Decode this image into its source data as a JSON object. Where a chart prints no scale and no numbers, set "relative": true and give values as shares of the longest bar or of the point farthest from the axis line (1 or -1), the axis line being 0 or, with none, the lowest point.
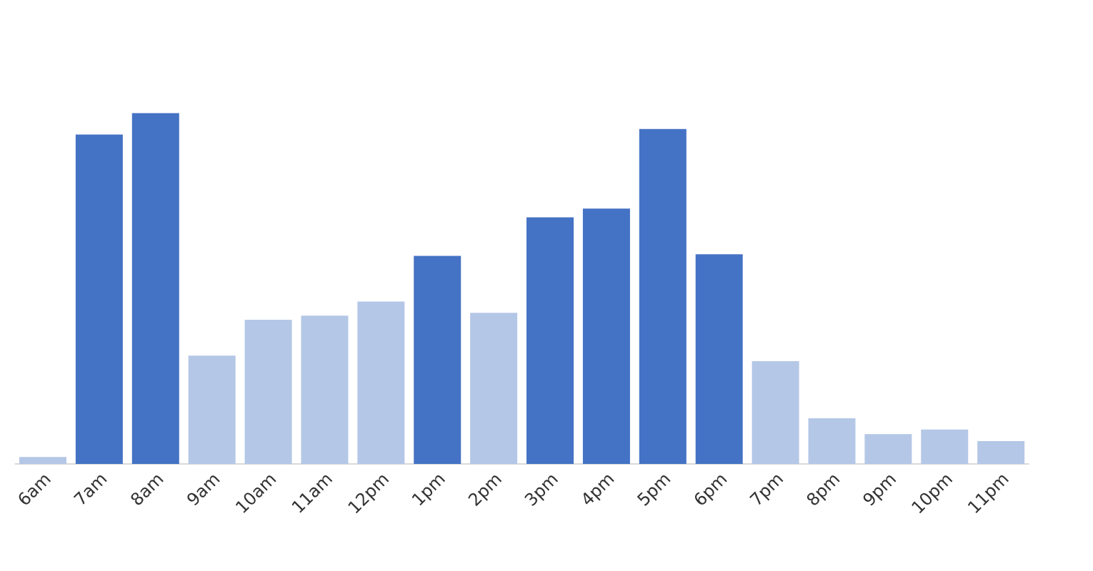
{
  "chart_data": {
    "type": "bar",
    "relative": true,
    "categories": [
      "6am",
      "7am",
      "8am",
      "9am",
      "10am",
      "11am",
      "12pm",
      "1pm",
      "2pm",
      "3pm",
      "4pm",
      "5pm",
      "6pm",
      "7pm",
      "8pm",
      "9pm",
      "10pm",
      "11pm"
    ],
    "values": [
      0.02,
      0.939,
      1,
      0.309,
      0.411,
      0.423,
      0.463,
      0.593,
      0.431,
      0.703,
      0.728,
      0.955,
      0.598,
      0.293,
      0.13,
      0.085,
      0.098,
      0.065
    ],
    "colors": [
      "#b4c7e7",
      "#4472c4",
      "#4472c4",
      "#b4c7e7",
      "#b4c7e7",
      "#b4c7e7",
      "#b4c7e7",
      "#4472c4",
      "#b4c7e7",
      "#4472c4",
      "#4472c4",
      "#4472c4",
      "#4472c4",
      "#b4c7e7",
      "#b4c7e7",
      "#b4c7e7",
      "#b4c7e7",
      "#b4c7e7"
    ]
  }
}
